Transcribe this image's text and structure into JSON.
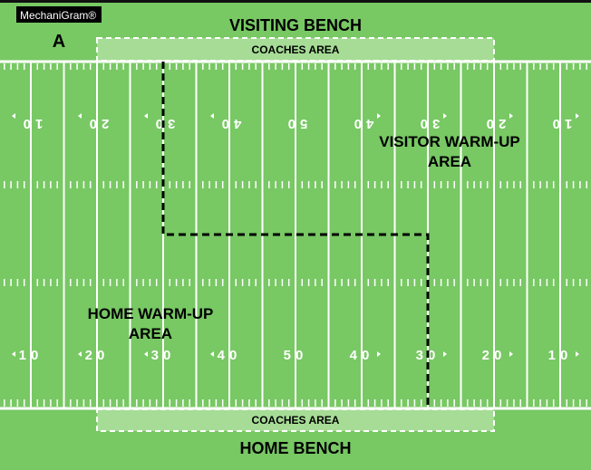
{
  "logo": "MechaniGram®",
  "diagram_label": "A",
  "visiting_bench": "VISITING BENCH",
  "home_bench": "HOME BENCH",
  "coaches_area_top": "COACHES AREA",
  "coaches_area_bottom": "COACHES AREA",
  "visitor_warmup": [
    "VISITOR WARM-UP",
    "AREA"
  ],
  "home_warmup": [
    "HOME WARM-UP",
    "AREA"
  ],
  "yard_numbers": [
    "10",
    "20",
    "30",
    "40",
    "50",
    "40",
    "30",
    "20",
    "10"
  ],
  "colors": {
    "field": "#78c864",
    "coaches_area": "#a6dc96",
    "lines": "#ffffff",
    "divider": "#000000"
  }
}
